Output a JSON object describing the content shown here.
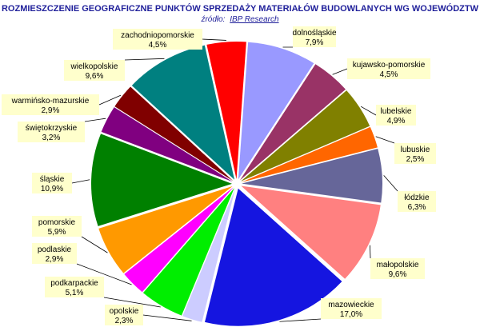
{
  "chart_data": {
    "type": "pie",
    "title": "ROZMIESZCZENIE GEOGRAFICZNE PUNKTÓW SPRZEDAŻY MATERIAŁÓW BUDOWLANYCH WG WOJEWÓDZTW",
    "subtitle_prefix": "źródło:",
    "subtitle_source": "IBP Research",
    "slices": [
      {
        "name": "dolnośląskie",
        "value": 7.9,
        "label": "7,9%",
        "color": "#9999ff"
      },
      {
        "name": "kujawsko-pomorskie",
        "value": 4.5,
        "label": "4,5%",
        "color": "#993366"
      },
      {
        "name": "lubelskie",
        "value": 4.9,
        "label": "4,9%",
        "color": "#808000"
      },
      {
        "name": "lubuskie",
        "value": 2.5,
        "label": "2,5%",
        "color": "#ff6600"
      },
      {
        "name": "łódzkie",
        "value": 6.3,
        "label": "6,3%",
        "color": "#666699"
      },
      {
        "name": "małopolskie",
        "value": 9.6,
        "label": "9,6%",
        "color": "#ff8080"
      },
      {
        "name": "mazowieckie",
        "value": 17.0,
        "label": "17,0%",
        "color": "#1515e0"
      },
      {
        "name": "opolskie",
        "value": 2.3,
        "label": "2,3%",
        "color": "#ccccff"
      },
      {
        "name": "podkarpackie",
        "value": 5.1,
        "label": "5,1%",
        "color": "#00ee00"
      },
      {
        "name": "podlaskie",
        "value": 2.9,
        "label": "2,9%",
        "color": "#ff00ff"
      },
      {
        "name": "pomorskie",
        "value": 5.9,
        "label": "5,9%",
        "color": "#ff9900"
      },
      {
        "name": "śląskie",
        "value": 10.9,
        "label": "10,9%",
        "color": "#008000"
      },
      {
        "name": "świętokrzyskie",
        "value": 3.2,
        "label": "3,2%",
        "color": "#800080"
      },
      {
        "name": "warmińsko-mazurskie",
        "value": 2.9,
        "label": "2,9%",
        "color": "#800000"
      },
      {
        "name": "wielkopolskie",
        "value": 9.6,
        "label": "9,6%",
        "color": "#008080"
      },
      {
        "name": "zachodniopomorskie",
        "value": 4.5,
        "label": "4,5%",
        "color": "#ff0000"
      }
    ]
  }
}
